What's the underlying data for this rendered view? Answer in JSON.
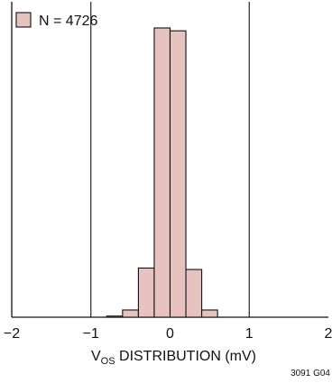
{
  "chart_data": {
    "type": "bar",
    "x_label_parts": [
      "V",
      "OS",
      " DISTRIBUTION (mV)"
    ],
    "xlim": [
      -2,
      2
    ],
    "x_ticks": [
      "−2",
      "−1",
      "0",
      "1",
      "2"
    ],
    "grid_x": [
      -1,
      1
    ],
    "legend": {
      "label": "N = 4726",
      "placement": "top-left"
    },
    "figure_id": "3091 G04",
    "bin_width": 0.2,
    "bins": [
      {
        "x_start": -0.8,
        "value": 0.4
      },
      {
        "x_start": -0.6,
        "value": 2.5
      },
      {
        "x_start": -0.4,
        "value": 17
      },
      {
        "x_start": -0.2,
        "value": 100
      },
      {
        "x_start": 0.0,
        "value": 99
      },
      {
        "x_start": 0.2,
        "value": 16.5
      },
      {
        "x_start": 0.4,
        "value": 2.5
      }
    ],
    "ylim": [
      0,
      100
    ],
    "colors": {
      "bar_fill": "#e7c3bf",
      "bar_stroke": "#111111",
      "axis": "#111111",
      "grid": "#111111"
    }
  }
}
